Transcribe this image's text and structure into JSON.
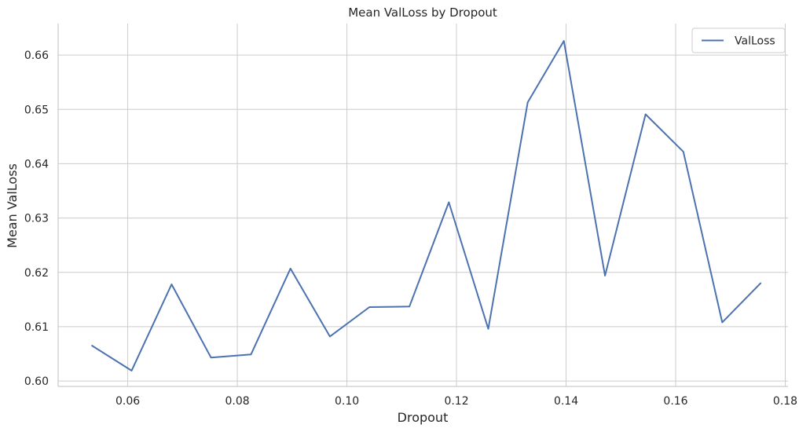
{
  "chart_data": {
    "type": "line",
    "title": "Mean ValLoss by Dropout",
    "xlabel": "Dropout",
    "ylabel": "Mean ValLoss",
    "xlim": [
      0.0473,
      0.1805
    ],
    "ylim": [
      0.599,
      0.6658
    ],
    "xticks": [
      0.06,
      0.08,
      0.1,
      0.12,
      0.14,
      0.16,
      0.18
    ],
    "xtick_labels": [
      "0.06",
      "0.08",
      "0.10",
      "0.12",
      "0.14",
      "0.16",
      "0.18"
    ],
    "yticks": [
      0.6,
      0.61,
      0.62,
      0.63,
      0.64,
      0.65,
      0.66
    ],
    "ytick_labels": [
      "0.60",
      "0.61",
      "0.62",
      "0.63",
      "0.64",
      "0.65",
      "0.66"
    ],
    "grid": true,
    "legend_position": "top-right",
    "series": [
      {
        "name": "ValLoss",
        "color": "#4c72b0",
        "x": [
          0.0535,
          0.0607,
          0.068,
          0.0752,
          0.0825,
          0.0897,
          0.0969,
          0.1041,
          0.1114,
          0.1186,
          0.1258,
          0.133,
          0.1396,
          0.1471,
          0.1545,
          0.1614,
          0.1685,
          0.1755
        ],
        "y": [
          0.6065,
          0.6019,
          0.6178,
          0.6043,
          0.6049,
          0.6207,
          0.6082,
          0.6136,
          0.6137,
          0.6329,
          0.6096,
          0.6513,
          0.6626,
          0.6194,
          0.6491,
          0.6422,
          0.6108,
          0.618
        ]
      }
    ]
  }
}
